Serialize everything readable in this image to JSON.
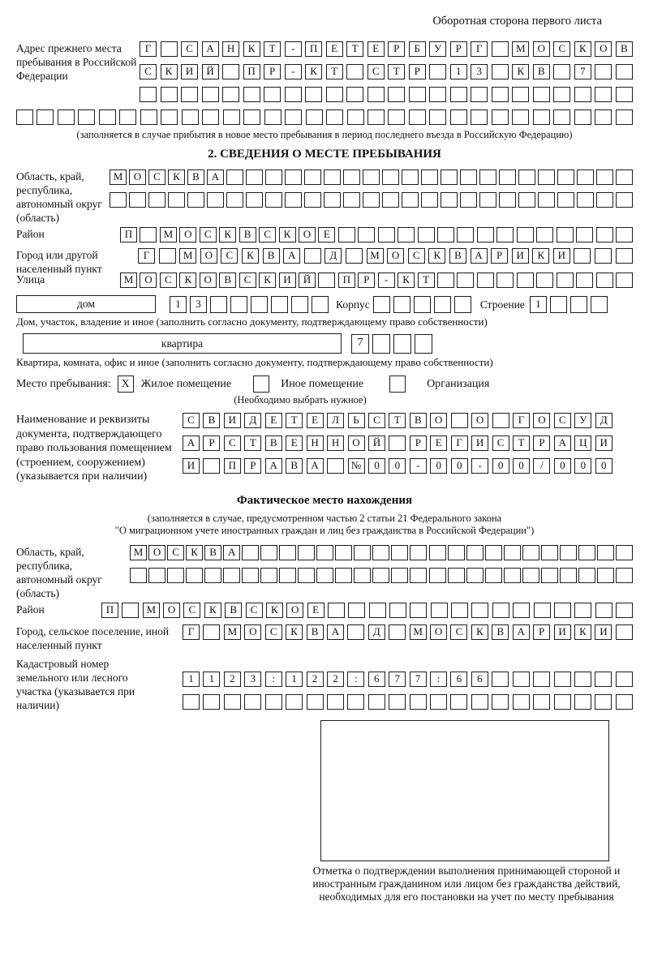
{
  "header_note": "Оборотная сторона первого листа",
  "prev_address": {
    "label": "Адрес прежнего места пребывания в Российской Федерации",
    "rows": [
      {
        "t": "Г САНКТ-ПЕТЕРБУРГ МОСКОВ",
        "n": 24
      },
      {
        "t": "СКИЙ ПР-КТ СТР 13 КВ 7",
        "n": 24
      },
      {
        "t": "",
        "n": 24
      }
    ],
    "full_row": {
      "t": "",
      "n": 30
    },
    "note": "(заполняется в случае прибытия в новое место пребывания в период последнего въезда в Российскую Федерацию)"
  },
  "section2": {
    "title": "2. СВЕДЕНИЯ О МЕСТЕ ПРЕБЫВАНИЯ",
    "region": {
      "label": "Область, край, республика, автономный округ (область)",
      "rows": [
        {
          "t": "МОСКВА",
          "n": 27
        },
        {
          "t": "",
          "n": 27
        }
      ]
    },
    "district": {
      "label": "Район",
      "row": {
        "t": "П МОСКВСКОЕ",
        "n": 26
      }
    },
    "city": {
      "label": "Город или другой населенный пункт",
      "row": {
        "t": "Г МОСКВА Д МОСКВАРИКИ",
        "n": 24
      }
    },
    "street": {
      "label": "Улица",
      "row": {
        "t": "МОСКОВСКИЙ ПР-КТ",
        "n": 26
      }
    },
    "house": {
      "box_label": "дом",
      "cells": {
        "t": "13",
        "n": 8
      },
      "korpus_label": "Корпус",
      "korpus_cells": {
        "t": "",
        "n": 5
      },
      "stroenie_label": "Строение",
      "stroenie_cells": {
        "t": "1",
        "n": 4
      },
      "note": "Дом, участок, владение и иное (заполнить согласно документу, подтверждающему право собственности)"
    },
    "apartment": {
      "box_label": "квартира",
      "cells": {
        "t": "7",
        "n": 4
      },
      "note": "Квартира, комната, офис и иное (заполнить согласно документу, подтверждающему право собственности)"
    },
    "stay_type": {
      "label": "Место пребывания:",
      "options": [
        {
          "mark": "X",
          "label": "Жилое помещение"
        },
        {
          "mark": "",
          "label": "Иное помещение"
        },
        {
          "mark": "",
          "label": "Организация"
        }
      ],
      "note": "(Необходимо выбрать нужное)"
    },
    "document": {
      "label": "Наименование и реквизиты документа, подтверждающего право пользования помещением (строением, сооружением) (указывается при наличии)",
      "rows": [
        {
          "t": "СВИДЕТЕЛЬСТВО О ГОСУД",
          "n": 21
        },
        {
          "t": "АРСТВЕННОЙ РЕГИСТРАЦИ",
          "n": 21
        },
        {
          "t": "И ПРАВА №00-00-00/000",
          "n": 21
        }
      ]
    }
  },
  "actual_location": {
    "title": "Фактическое место нахождения",
    "note1": "(заполняется в случае, предусмотренном частью 2 статьи 21 Федерального закона",
    "note2": "\"О миграционном учете иностранных граждан и лиц без гражданства в Российской Федерации\")",
    "region": {
      "label": "Область, край, республика, автономный округ (область)",
      "rows": [
        {
          "t": "МОСКВА",
          "n": 27
        },
        {
          "t": "",
          "n": 27
        }
      ]
    },
    "district": {
      "label": "Район",
      "row": {
        "t": "П МОСКВСКОЕ",
        "n": 26
      }
    },
    "city": {
      "label": "Город, сельское поселение, иной населенный пункт",
      "row": {
        "t": "Г МОСКВА Д МОСКВАРИКИ",
        "n": 22
      }
    },
    "cadastral": {
      "label": "Кадастровый номер земельного или лесного участка (указывается при наличии)",
      "rows": [
        {
          "t": "1123:122:677:66",
          "n": 22
        },
        {
          "t": "",
          "n": 22
        }
      ]
    },
    "stamp_note": "Отметка о подтверждении выполнения принимающей стороной и иностранным гражданином или лицом без гражданства действий, необходимых для его постановки на учет по месту пребывания"
  }
}
